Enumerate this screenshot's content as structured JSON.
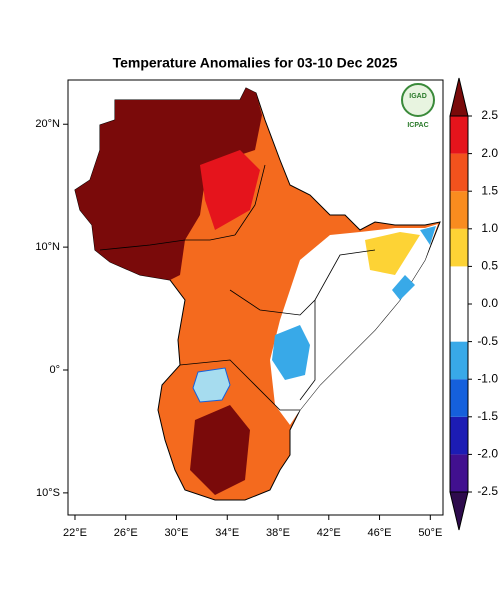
{
  "chart_data": {
    "type": "map",
    "title": "Temperature Anomalies for 03-10 Dec 2025",
    "xlim": [
      21.45,
      51.0
    ],
    "ylim": [
      -11.8,
      23.6
    ],
    "xticks": [
      {
        "value": 22,
        "label": "22°E"
      },
      {
        "value": 26,
        "label": "26°E"
      },
      {
        "value": 30,
        "label": "30°E"
      },
      {
        "value": 34,
        "label": "34°E"
      },
      {
        "value": 38,
        "label": "38°E"
      },
      {
        "value": 42,
        "label": "42°E"
      },
      {
        "value": 46,
        "label": "46°E"
      },
      {
        "value": 50,
        "label": "50°E"
      }
    ],
    "yticks": [
      {
        "value": 20,
        "label": "20°N"
      },
      {
        "value": 10,
        "label": "10°N"
      },
      {
        "value": 0,
        "label": "0°"
      },
      {
        "value": -10,
        "label": "10°S"
      }
    ],
    "logo": {
      "name": "IGAD",
      "org": "ICPAC"
    },
    "colorbar": {
      "lim": [
        -2.5,
        2.5
      ],
      "ticks": [
        2.5,
        {
          "value": 2,
          "label": "2.0"
        },
        1.5,
        {
          "value": 1,
          "label": "1.0"
        },
        0.5,
        {
          "value": 0,
          "label": "0.0"
        },
        -0.5,
        {
          "value": -1,
          "label": "-1.0"
        },
        -1.5,
        {
          "value": -2,
          "label": "-2.0"
        },
        -2.5
      ],
      "colors": [
        "#2e0b4d",
        "#41108f",
        "#1c1cb4",
        "#1560dc",
        "#38a9e8",
        "#ffffff",
        "#ffffff",
        "#fdd335",
        "#f98c1f",
        "#f2521d",
        "#e5141c",
        "#7a0a0a"
      ]
    }
  }
}
